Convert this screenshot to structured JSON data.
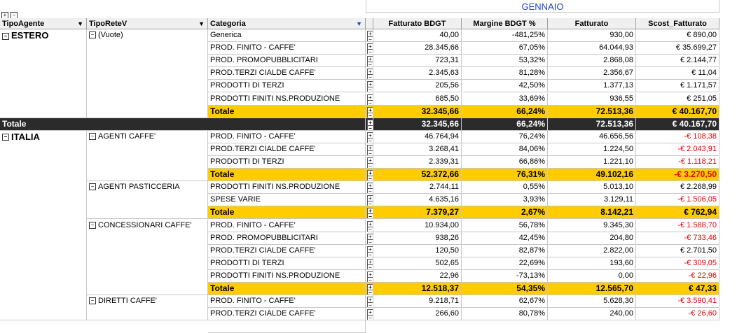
{
  "header": {
    "month": "GENNAIO",
    "dims": [
      "TipoAgente",
      "TipoReteV",
      "Categoria"
    ],
    "measures": [
      "Fatturato BDGT",
      "Margine BDGT %",
      "Fatturato",
      "Scost_Fatturato"
    ]
  },
  "groups": [
    {
      "agent": "ESTERO",
      "subgroups": [
        {
          "rete": "(Vuote)",
          "rows": [
            {
              "cat": "Generica",
              "v": [
                "40,00",
                "-481,25%",
                "930,00",
                "€ 890,00"
              ],
              "neg": false
            },
            {
              "cat": "PROD. FINITO - CAFFE'",
              "v": [
                "28.345,66",
                "67,05%",
                "64.044,93",
                "€ 35.699,27"
              ],
              "neg": false
            },
            {
              "cat": "PROD. PROMOPUBBLICITARI",
              "v": [
                "723,31",
                "53,32%",
                "2.868,08",
                "€ 2.144,77"
              ],
              "neg": false
            },
            {
              "cat": "PROD.TERZI CIALDE CAFFE'",
              "v": [
                "2.345,63",
                "81,28%",
                "2.356,67",
                "€ 11,04"
              ],
              "neg": false
            },
            {
              "cat": "PRODOTTI DI TERZI",
              "v": [
                "205,56",
                "42,50%",
                "1.377,13",
                "€ 1.171,57"
              ],
              "neg": false
            },
            {
              "cat": "PRODOTTI FINITI NS.PRODUZIONE",
              "v": [
                "685,50",
                "33,69%",
                "936,55",
                "€ 251,05"
              ],
              "neg": false
            }
          ],
          "total": {
            "label": "Totale",
            "v": [
              "32.345,66",
              "66,24%",
              "72.513,36",
              "€ 40.167,70"
            ],
            "neg": false
          }
        }
      ],
      "total": {
        "label": "Totale",
        "v": [
          "32.345,66",
          "66,24%",
          "72.513,36",
          "€ 40.167,70"
        ]
      }
    },
    {
      "agent": "ITALIA",
      "subgroups": [
        {
          "rete": "AGENTI CAFFE'",
          "rows": [
            {
              "cat": "PROD. FINITO - CAFFE'",
              "v": [
                "46.764,94",
                "76,24%",
                "46.656,56",
                "-€ 108,38"
              ],
              "neg": true
            },
            {
              "cat": "PROD.TERZI CIALDE CAFFE'",
              "v": [
                "3.268,41",
                "84,06%",
                "1.224,50",
                "-€ 2.043,91"
              ],
              "neg": true
            },
            {
              "cat": "PRODOTTI DI TERZI",
              "v": [
                "2.339,31",
                "66,86%",
                "1.221,10",
                "-€ 1.118,21"
              ],
              "neg": true
            }
          ],
          "total": {
            "label": "Totale",
            "v": [
              "52.372,66",
              "76,31%",
              "49.102,16",
              "-€ 3.270,50"
            ],
            "neg": true
          }
        },
        {
          "rete": "AGENTI PASTICCERIA",
          "rows": [
            {
              "cat": "PRODOTTI FINITI NS.PRODUZIONE",
              "v": [
                "2.744,11",
                "0,55%",
                "5.013,10",
                "€ 2.268,99"
              ],
              "neg": false
            },
            {
              "cat": "SPESE VARIE",
              "v": [
                "4.635,16",
                "3,93%",
                "3.129,11",
                "-€ 1.506,05"
              ],
              "neg": true
            }
          ],
          "total": {
            "label": "Totale",
            "v": [
              "7.379,27",
              "2,67%",
              "8.142,21",
              "€ 762,94"
            ],
            "neg": false
          }
        },
        {
          "rete": "CONCESSIONARI CAFFE'",
          "rows": [
            {
              "cat": "PROD. FINITO - CAFFE'",
              "v": [
                "10.934,00",
                "56,78%",
                "9.345,30",
                "-€ 1.588,70"
              ],
              "neg": true
            },
            {
              "cat": "PROD. PROMOPUBBLICITARI",
              "v": [
                "938,26",
                "42,45%",
                "204,80",
                "-€ 733,46"
              ],
              "neg": true
            },
            {
              "cat": "PROD.TERZI CIALDE CAFFE'",
              "v": [
                "120,50",
                "82,87%",
                "2.822,00",
                "€ 2.701,50"
              ],
              "neg": false
            },
            {
              "cat": "PRODOTTI DI TERZI",
              "v": [
                "502,65",
                "22,69%",
                "193,60",
                "-€ 309,05"
              ],
              "neg": true
            },
            {
              "cat": "PRODOTTI FINITI NS.PRODUZIONE",
              "v": [
                "22,96",
                "-73,13%",
                "0,00",
                "-€ 22,96"
              ],
              "neg": true
            }
          ],
          "total": {
            "label": "Totale",
            "v": [
              "12.518,37",
              "54,35%",
              "12.565,70",
              "€ 47,33"
            ],
            "neg": false
          }
        },
        {
          "rete": "DIRETTI CAFFE'",
          "rows": [
            {
              "cat": "PROD. FINITO - CAFFE'",
              "v": [
                "9.218,71",
                "62,67%",
                "5.628,30",
                "-€ 3.590,41"
              ],
              "neg": true
            },
            {
              "cat": "PROD.TERZI CIALDE CAFFE'",
              "v": [
                "266,60",
                "80,78%",
                "240,00",
                "-€ 26,60"
              ],
              "neg": true
            }
          ]
        }
      ]
    }
  ]
}
